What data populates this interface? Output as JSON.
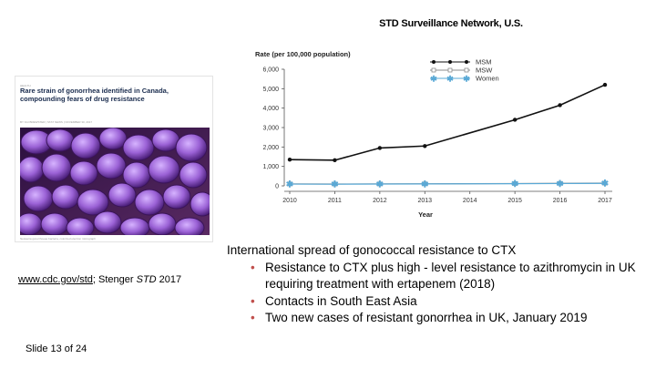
{
  "title": "STD Surveillance Network, U.S.",
  "article": {
    "kicker": "HEALTH",
    "headline": "Rare strain of gonorrhea identified in Canada, compounding fears of drug resistance",
    "byline": "BY KAI BREWSTER | STAT NEWS | NOVEMBER 30, 2017",
    "caption": "Neisseria gonorrhoeae bacteria, colorized electron micrograph"
  },
  "chart_data": {
    "type": "line",
    "ylabel": "Rate (per 100,000 population)",
    "xlabel": "Year",
    "categories": [
      "2010",
      "2011",
      "2012",
      "2013",
      "2014",
      "2015",
      "2016",
      "2017"
    ],
    "ylim": [
      0,
      6000
    ],
    "yticks": [
      "0",
      "1,000",
      "2,000",
      "3,000",
      "4,000",
      "5,000",
      "6,000"
    ],
    "series": [
      {
        "name": "MSM",
        "values": [
          1350,
          1320,
          1950,
          2050,
          null,
          3400,
          4150,
          5200
        ],
        "color": "#111111",
        "marker": "circle"
      },
      {
        "name": "MSW",
        "values": [
          100,
          95,
          100,
          105,
          null,
          120,
          130,
          140
        ],
        "color": "#8c8c8c",
        "marker": "square"
      },
      {
        "name": "Women",
        "values": [
          90,
          85,
          95,
          100,
          null,
          110,
          120,
          130
        ],
        "color": "#5aa9d6",
        "marker": "asterisk"
      }
    ],
    "legend": "top-right"
  },
  "reference": {
    "link": "www.cdc.gov/std",
    "sep": "; Stenger ",
    "journal": "STD",
    "year": " 2017"
  },
  "bullets": {
    "heading": "International spread of gonococcal resistance to CTX",
    "items": [
      "Resistance to CTX plus high - level resistance to azithromycin in UK requiring treatment with ertapenem (2018)",
      "Contacts in South East Asia",
      "Two new cases of resistant gonorrhea in UK, January 2019"
    ],
    "bullet_char": "•"
  },
  "footer": {
    "slide_number": "Slide 13 of 24"
  }
}
